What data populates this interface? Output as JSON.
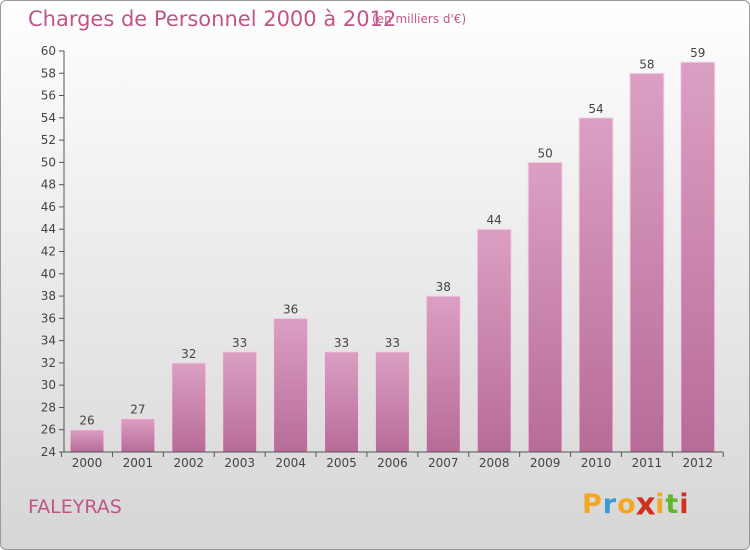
{
  "title": "Charges de Personnel 2000 à 2012",
  "subtitle": "(en milliers d'€)",
  "commune": "FALEYRAS",
  "logo": {
    "letters": [
      "P",
      "r",
      "o",
      "x",
      "i",
      "t",
      "i"
    ],
    "colors": [
      "#f5a623",
      "#3c9ad6",
      "#f5a623",
      "#d0301e",
      "#f5a623",
      "#61b530",
      "#d0301e"
    ]
  },
  "colors": {
    "bar": "#dc9fc3",
    "bar_dark": "#b76c98",
    "axis": "#555555",
    "grid": "#7a7a7a",
    "text": "#444444",
    "accent": "#c0558a"
  },
  "chart_data": {
    "type": "bar",
    "title": "Charges de Personnel 2000 à 2012",
    "xlabel": "",
    "ylabel": "(en milliers d'€)",
    "categories": [
      "2000",
      "2001",
      "2002",
      "2003",
      "2004",
      "2005",
      "2006",
      "2007",
      "2008",
      "2009",
      "2010",
      "2011",
      "2012"
    ],
    "values": [
      26,
      27,
      32,
      33,
      36,
      33,
      33,
      38,
      44,
      50,
      54,
      58,
      59
    ],
    "ylim": [
      24,
      60
    ],
    "ytick_step": 2,
    "grid": false
  }
}
